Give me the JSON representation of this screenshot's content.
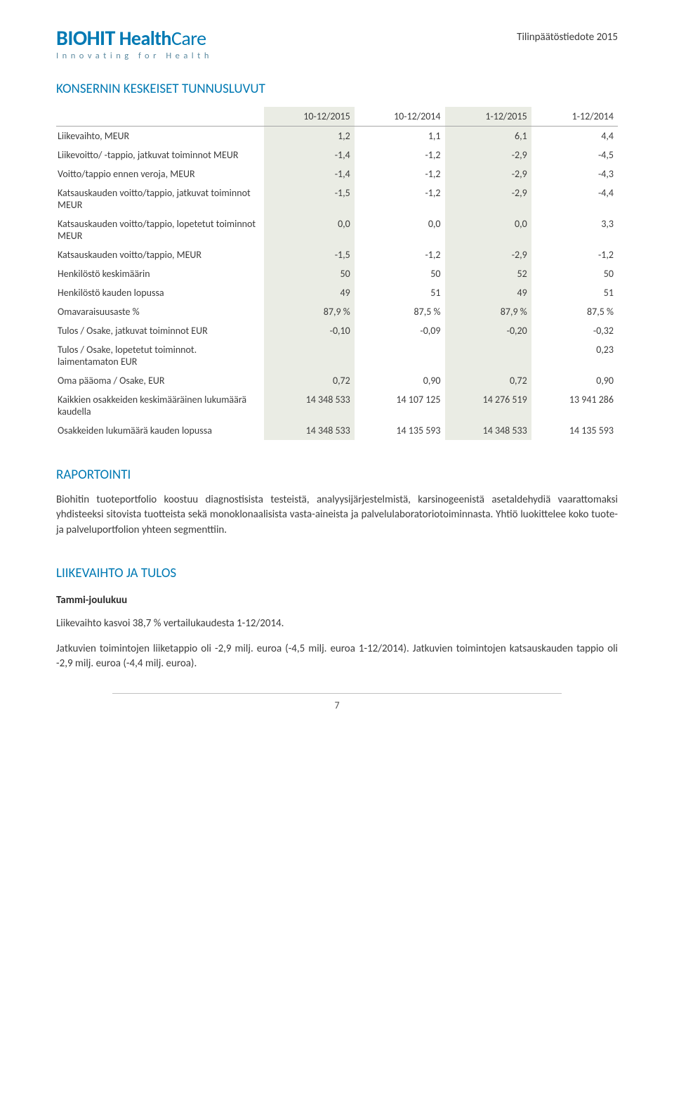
{
  "header": {
    "logo_main_a": "BIOHIT",
    "logo_main_b": "Health",
    "logo_main_c": "Care",
    "logo_tagline": "Innovating for Health",
    "report_label": "Tilinpäätöstiedote 2015"
  },
  "sections": {
    "kpi_title": "KONSERNIN KESKEISET TUNNUSLUVUT",
    "reporting_title": "RAPORTOINTI",
    "rev_title": "LIIKEVAIHTO JA TULOS"
  },
  "kpi_table": {
    "columns": [
      "",
      "10-12/2015",
      "10-12/2014",
      "1-12/2015",
      "1-12/2014"
    ],
    "col_shade": [
      false,
      true,
      false,
      true,
      false
    ],
    "groups": [
      {
        "rows": [
          {
            "label": "Liikevaihto, MEUR",
            "values": [
              "1,2",
              "1,1",
              "6,1",
              "4,4"
            ]
          },
          {
            "label": "Liikevoitto/ -tappio, jatkuvat toiminnot MEUR",
            "values": [
              "-1,4",
              "-1,2",
              "-2,9",
              "-4,5"
            ]
          },
          {
            "label": "Voitto/tappio ennen veroja, MEUR",
            "values": [
              "-1,4",
              "-1,2",
              "-2,9",
              "-4,3"
            ]
          }
        ]
      },
      {
        "rows": [
          {
            "label": "Katsauskauden voitto/tappio, jatkuvat toiminnot MEUR",
            "values": [
              "-1,5",
              "-1,2",
              "-2,9",
              "-4,4"
            ]
          },
          {
            "label": "Katsauskauden voitto/tappio, lopetetut toiminnot MEUR",
            "values": [
              "0,0",
              "0,0",
              "0,0",
              "3,3"
            ]
          },
          {
            "label": "Katsauskauden voitto/tappio, MEUR",
            "values": [
              "-1,5",
              "-1,2",
              "-2,9",
              "-1,2"
            ]
          }
        ]
      },
      {
        "rows": [
          {
            "label": "Henkilöstö keskimäärin",
            "values": [
              "50",
              "50",
              "52",
              "50"
            ]
          }
        ]
      },
      {
        "rows": [
          {
            "label": "Henkilöstö kauden lopussa",
            "values": [
              "49",
              "51",
              "49",
              "51"
            ]
          }
        ]
      },
      {
        "rows": [
          {
            "label": "Omavaraisuusaste %",
            "values": [
              "87,9 %",
              "87,5 %",
              "87,9 %",
              "87,5 %"
            ]
          }
        ]
      },
      {
        "rows": [
          {
            "label": "Tulos / Osake, jatkuvat toiminnot EUR",
            "values": [
              "-0,10",
              "-0,09",
              "-0,20",
              "-0,32"
            ]
          }
        ]
      },
      {
        "rows": [
          {
            "label": "Tulos / Osake, lopetetut toiminnot. laimentamaton EUR",
            "values": [
              "",
              "",
              "",
              "0,23"
            ]
          },
          {
            "label": "Oma pääoma / Osake, EUR",
            "values": [
              "0,72",
              "0,90",
              "0,72",
              "0,90"
            ]
          }
        ]
      },
      {
        "rows": [
          {
            "label": "Kaikkien osakkeiden keskimääräinen lukumäärä kaudella",
            "values": [
              "14 348 533",
              "14 107 125",
              "14 276 519",
              "13 941 286"
            ]
          },
          {
            "label": "Osakkeiden lukumäärä kauden lopussa",
            "values": [
              "14 348 533",
              "14 135 593",
              "14 348 533",
              "14 135 593"
            ]
          }
        ]
      }
    ]
  },
  "reporting_text": "Biohitin tuoteportfolio koostuu diagnostisista testeistä, analyysijärjestelmistä, karsinogeenistä asetaldehydiä vaarattomaksi yhdisteeksi sitovista tuotteista sekä monoklonaalisista vasta-aineista ja palvelulaboratoriotoiminnasta. Yhtiö luokittelee koko tuote- ja palveluportfolion yhteen segmenttiin.",
  "rev_section": {
    "subheading": "Tammi-joulukuu",
    "para1": "Liikevaihto kasvoi 38,7 % vertailukaudesta 1-12/2014.",
    "para2": "Jatkuvien toimintojen liiketappio oli -2,9 milj. euroa (-4,5 milj. euroa 1-12/2014). Jatkuvien toimintojen katsauskauden tappio oli -2,9 milj. euroa (-4,4 milj. euroa)."
  },
  "page_number": "7",
  "colors": {
    "brand": "#0079b3",
    "text": "#3b3b3b",
    "shade": "#eaece4",
    "rule": "#a6a6a6"
  }
}
